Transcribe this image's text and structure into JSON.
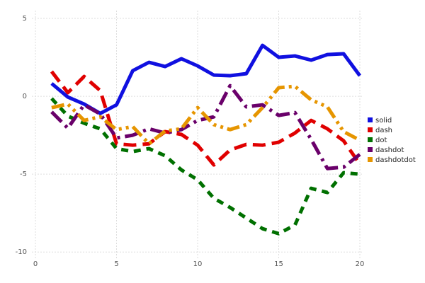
{
  "chart_data": {
    "type": "line",
    "x": [
      1,
      2,
      3,
      4,
      5,
      6,
      7,
      8,
      9,
      10,
      11,
      12,
      13,
      14,
      15,
      16,
      17,
      18,
      19,
      20
    ],
    "xlim": [
      0,
      20
    ],
    "xticks": [
      0,
      5,
      10,
      15,
      20
    ],
    "ylim": [
      -10.4,
      5.5
    ],
    "yticks": [
      5,
      0,
      -5,
      -10
    ],
    "grid": true,
    "legend": "right",
    "series": [
      {
        "name": "solid",
        "color": "#1010e0",
        "dasharray": "none",
        "values": [
          0.82,
          -0.05,
          -0.5,
          -1.1,
          -0.55,
          1.64,
          2.18,
          1.91,
          2.41,
          1.95,
          1.36,
          1.32,
          1.45,
          3.27,
          2.5,
          2.59,
          2.32,
          2.68,
          2.73,
          1.32
        ]
      },
      {
        "name": "dash",
        "color": "#e00000",
        "dasharray": "18,9",
        "values": [
          1.59,
          0.23,
          1.27,
          0.36,
          -3.05,
          -3.14,
          -3.05,
          -2.27,
          -2.45,
          -3.14,
          -4.41,
          -3.45,
          -3.09,
          -3.14,
          -2.95,
          -2.36,
          -1.55,
          -2.09,
          -2.86,
          -4.36
        ]
      },
      {
        "name": "dot",
        "color": "#007000",
        "dasharray": "10,8",
        "values": [
          -0.14,
          -1.27,
          -1.73,
          -2.09,
          -3.36,
          -3.55,
          -3.36,
          -3.82,
          -4.73,
          -5.36,
          -6.55,
          -7.14,
          -7.82,
          -8.5,
          -8.82,
          -8.27,
          -5.91,
          -6.18,
          -4.91,
          -5.0
        ]
      },
      {
        "name": "dashdot",
        "color": "#6a006a",
        "dasharray": "20,7,4,7",
        "values": [
          -1.0,
          -2.05,
          -0.55,
          -1.14,
          -2.68,
          -2.5,
          -2.09,
          -2.36,
          -2.14,
          -1.55,
          -1.32,
          0.68,
          -0.68,
          -0.55,
          -1.23,
          -1.05,
          -2.77,
          -4.64,
          -4.55,
          -3.73
        ]
      },
      {
        "name": "dashdotdot",
        "color": "#e69500",
        "dasharray": "18,6,4,6,4,6",
        "values": [
          -0.73,
          -0.5,
          -1.55,
          -1.32,
          -2.14,
          -1.95,
          -3.05,
          -2.23,
          -2.09,
          -0.73,
          -1.82,
          -2.14,
          -1.82,
          -0.73,
          0.55,
          0.64,
          -0.23,
          -0.68,
          -2.27,
          -2.82
        ]
      }
    ]
  }
}
